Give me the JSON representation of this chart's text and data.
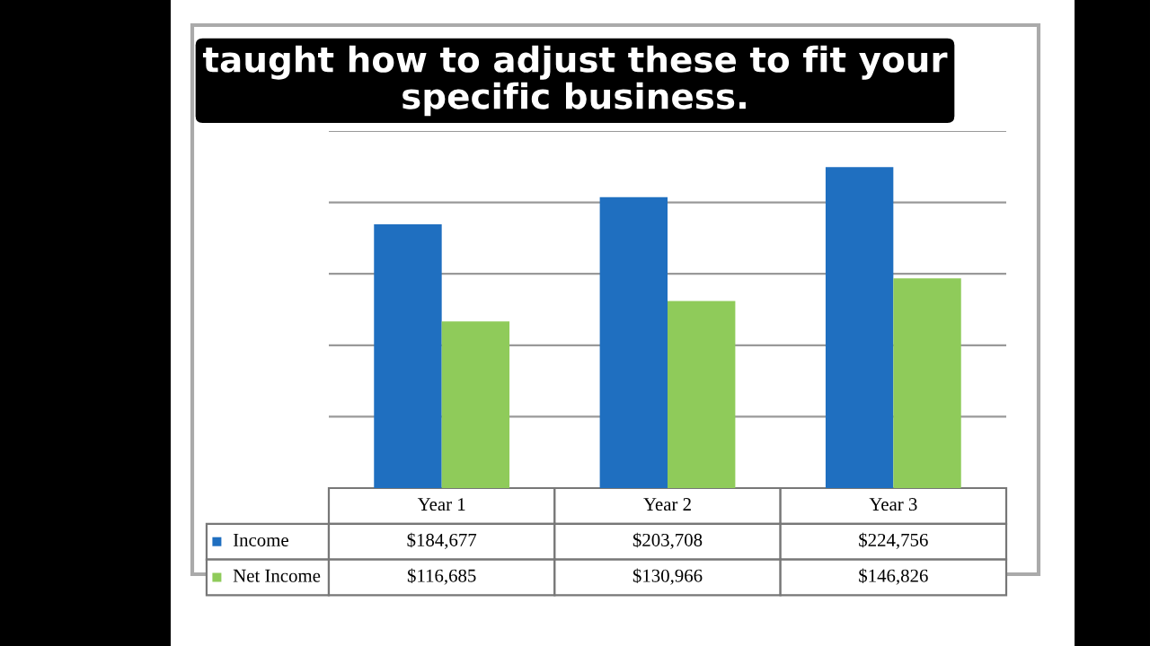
{
  "chart_data": {
    "type": "bar",
    "categories": [
      "Year 1",
      "Year 2",
      "Year 3"
    ],
    "series": [
      {
        "name": "Income",
        "color": "#1f6fc0",
        "values": [
          184677,
          203708,
          224756
        ],
        "value_labels": [
          "$184,677",
          "$203,708",
          "$224,756"
        ]
      },
      {
        "name": "Net Income",
        "color": "#8fcb5a",
        "values": [
          116685,
          130966,
          146826
        ],
        "value_labels": [
          "$116,685",
          "$130,966",
          "$146,826"
        ]
      }
    ],
    "ylim": [
      0,
      250000
    ],
    "yticks": [
      {
        "value": 50000,
        "label": null
      },
      {
        "value": 100000,
        "label": null
      },
      {
        "value": 150000,
        "label": null
      },
      {
        "value": 200000,
        "label": null
      },
      {
        "value": 250000,
        "label": null
      }
    ],
    "grid": "y",
    "legend": "bottom left",
    "tick_labels": false,
    "annotations": [
      "taught how to adjust these to fit your specific business."
    ]
  }
}
